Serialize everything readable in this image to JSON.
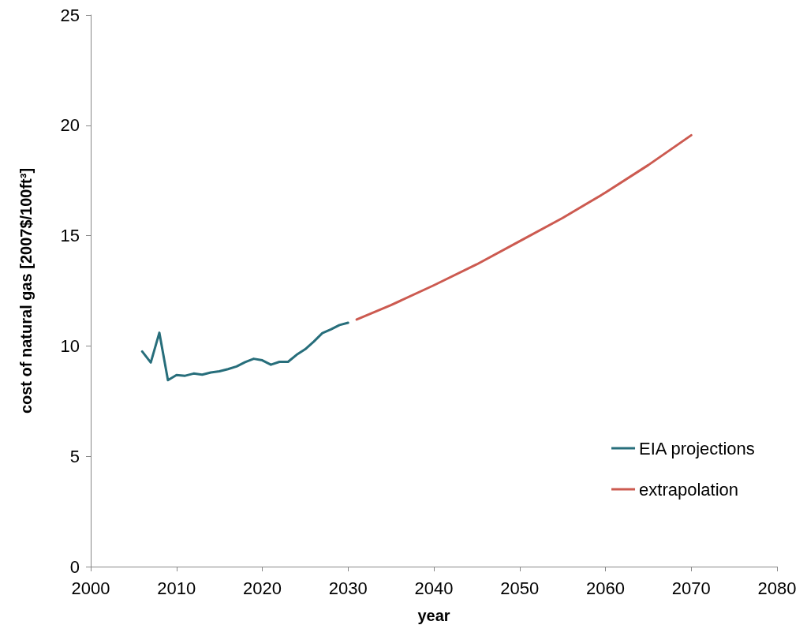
{
  "chart_data": {
    "type": "line",
    "xlabel": "year",
    "ylabel": "cost of natural gas [2007$/100ft³]",
    "xlim": [
      2000,
      2080
    ],
    "xticks": [
      2000,
      2010,
      2020,
      2030,
      2040,
      2050,
      2060,
      2070,
      2080
    ],
    "ylim": [
      0,
      25
    ],
    "yticks": [
      0,
      5,
      10,
      15,
      20,
      25
    ],
    "grid": false,
    "legend": "bottom right",
    "marker": "none",
    "line_style": "solid",
    "series": [
      {
        "name": "EIA projections",
        "color": "#276e7b",
        "x": [
          2006,
          2007,
          2008,
          2009,
          2010,
          2011,
          2012,
          2013,
          2014,
          2015,
          2016,
          2017,
          2018,
          2019,
          2020,
          2021,
          2022,
          2023,
          2024,
          2025,
          2026,
          2027,
          2028,
          2029,
          2030
        ],
        "values": [
          9.75,
          9.25,
          10.6,
          8.45,
          8.68,
          8.65,
          8.75,
          8.7,
          8.8,
          8.85,
          8.95,
          9.07,
          9.27,
          9.42,
          9.35,
          9.15,
          9.28,
          9.28,
          9.6,
          9.85,
          10.2,
          10.58,
          10.75,
          10.95,
          11.05
        ]
      },
      {
        "name": "extrapolation",
        "color": "#cc5a50",
        "x": [
          2031,
          2035,
          2040,
          2045,
          2050,
          2055,
          2060,
          2065,
          2070
        ],
        "values": [
          11.2,
          11.85,
          12.75,
          13.7,
          14.75,
          15.8,
          16.95,
          18.2,
          19.55
        ]
      }
    ]
  }
}
